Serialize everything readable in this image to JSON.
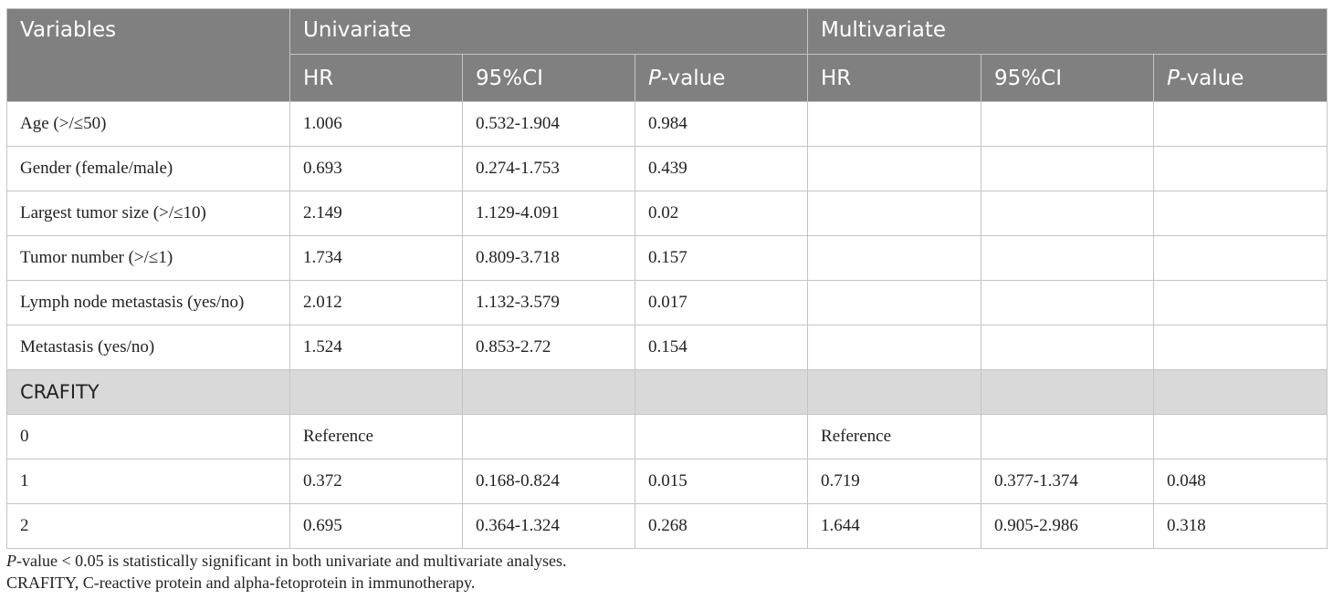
{
  "header": {
    "variables": "Variables",
    "univariate": "Univariate",
    "multivariate": "Multivariate",
    "subcols": {
      "hr": "HR",
      "ci": "95%CI",
      "p_prefix": "P",
      "p_suffix": "-value"
    }
  },
  "rows": [
    {
      "label": "Age (>/≤50)",
      "u_hr": "1.006",
      "u_ci": "0.532-1.904",
      "u_p": "0.984",
      "m_hr": "",
      "m_ci": "",
      "m_p": ""
    },
    {
      "label": "Gender (female/male)",
      "u_hr": "0.693",
      "u_ci": "0.274-1.753",
      "u_p": "0.439",
      "m_hr": "",
      "m_ci": "",
      "m_p": ""
    },
    {
      "label": "Largest tumor size (>/≤10)",
      "u_hr": "2.149",
      "u_ci": "1.129-4.091",
      "u_p": "0.02",
      "m_hr": "",
      "m_ci": "",
      "m_p": ""
    },
    {
      "label": "Tumor number (>/≤1)",
      "u_hr": "1.734",
      "u_ci": "0.809-3.718",
      "u_p": "0.157",
      "m_hr": "",
      "m_ci": "",
      "m_p": ""
    },
    {
      "label": "Lymph node metastasis (yes/no)",
      "u_hr": "2.012",
      "u_ci": "1.132-3.579",
      "u_p": "0.017",
      "m_hr": "",
      "m_ci": "",
      "m_p": ""
    },
    {
      "label": "Metastasis (yes/no)",
      "u_hr": "1.524",
      "u_ci": "0.853-2.72",
      "u_p": "0.154",
      "m_hr": "",
      "m_ci": "",
      "m_p": ""
    }
  ],
  "section": {
    "label": "CRAFITY"
  },
  "crafity_rows": [
    {
      "label": "0",
      "u_hr": "Reference",
      "u_ci": "",
      "u_p": "",
      "m_hr": "Reference",
      "m_ci": "",
      "m_p": ""
    },
    {
      "label": "1",
      "u_hr": "0.372",
      "u_ci": "0.168-0.824",
      "u_p": "0.015",
      "m_hr": "0.719",
      "m_ci": "0.377-1.374",
      "m_p": "0.048"
    },
    {
      "label": "2",
      "u_hr": "0.695",
      "u_ci": "0.364-1.324",
      "u_p": "0.268",
      "m_hr": "1.644",
      "m_ci": "0.905-2.986",
      "m_p": "0.318"
    }
  ],
  "footnotes": {
    "note1_italic": "P",
    "note1_rest": "-value < 0.05 is statistically significant in both univariate and multivariate analyses.",
    "note2": "CRAFITY, C-reactive protein and alpha-fetoprotein in immunotherapy."
  }
}
